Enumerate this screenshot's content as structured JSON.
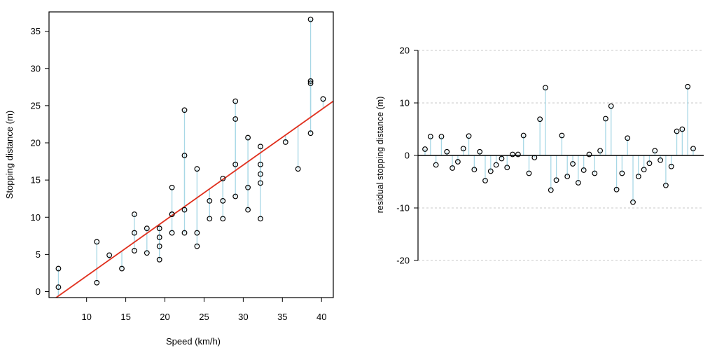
{
  "colors": {
    "residual_segment": "#a8d8e6",
    "fit_line": "#e0301e",
    "point_stroke": "#000000",
    "axis": "#000000",
    "grid": "#c8c8c8",
    "zero_line": "#000000"
  },
  "chart_data": [
    {
      "type": "scatter",
      "xlabel": "Speed (km/h)",
      "ylabel": "Stopping distance (m)",
      "xlim": [
        5.2,
        41.5
      ],
      "ylim": [
        -0.8,
        37.6
      ],
      "xticks": [
        10,
        15,
        20,
        25,
        30,
        35,
        40
      ],
      "yticks": [
        0,
        5,
        10,
        15,
        20,
        25,
        30,
        35
      ],
      "box": true,
      "fit_line": {
        "intercept": -5.36,
        "slope": 0.746
      },
      "points": [
        [
          6.4,
          0.6
        ],
        [
          6.4,
          3.1
        ],
        [
          11.3,
          1.2
        ],
        [
          11.3,
          6.7
        ],
        [
          12.9,
          4.9
        ],
        [
          14.5,
          3.1
        ],
        [
          16.1,
          5.5
        ],
        [
          16.1,
          7.9
        ],
        [
          16.1,
          10.4
        ],
        [
          17.7,
          5.2
        ],
        [
          17.7,
          8.5
        ],
        [
          19.3,
          4.3
        ],
        [
          19.3,
          6.1
        ],
        [
          19.3,
          7.3
        ],
        [
          19.3,
          8.5
        ],
        [
          20.9,
          7.9
        ],
        [
          20.9,
          10.4
        ],
        [
          20.9,
          10.4
        ],
        [
          20.9,
          14.0
        ],
        [
          22.5,
          7.9
        ],
        [
          22.5,
          11.0
        ],
        [
          22.5,
          18.3
        ],
        [
          22.5,
          24.4
        ],
        [
          24.1,
          6.1
        ],
        [
          24.1,
          7.9
        ],
        [
          24.1,
          16.5
        ],
        [
          25.7,
          9.8
        ],
        [
          25.7,
          12.2
        ],
        [
          27.4,
          9.8
        ],
        [
          27.4,
          12.2
        ],
        [
          27.4,
          15.2
        ],
        [
          29.0,
          12.8
        ],
        [
          29.0,
          17.1
        ],
        [
          29.0,
          23.2
        ],
        [
          29.0,
          25.6
        ],
        [
          30.6,
          11.0
        ],
        [
          30.6,
          14.0
        ],
        [
          30.6,
          20.7
        ],
        [
          32.2,
          9.8
        ],
        [
          32.2,
          14.6
        ],
        [
          32.2,
          15.8
        ],
        [
          32.2,
          17.1
        ],
        [
          32.2,
          19.5
        ],
        [
          35.4,
          20.1
        ],
        [
          37.0,
          16.5
        ],
        [
          38.6,
          21.3
        ],
        [
          38.6,
          28.0
        ],
        [
          38.6,
          28.3
        ],
        [
          38.6,
          36.6
        ],
        [
          40.2,
          25.9
        ]
      ]
    },
    {
      "type": "scatter",
      "xlabel": "",
      "ylabel": "residual stopping distance (m)",
      "ylim": [
        -23,
        23
      ],
      "yticks": [
        -20,
        -10,
        0,
        10,
        20
      ],
      "grid": true,
      "zero_line": true,
      "residuals": [
        1.2,
        3.6,
        -1.8,
        3.6,
        0.7,
        -2.4,
        -1.2,
        1.3,
        3.7,
        -2.7,
        0.7,
        -4.8,
        -3.0,
        -1.8,
        -0.6,
        -2.3,
        0.2,
        0.2,
        3.8,
        -3.4,
        -0.4,
        6.9,
        12.9,
        -6.6,
        -4.7,
        3.8,
        -4.0,
        -1.6,
        -5.2,
        -2.8,
        0.2,
        -3.4,
        0.9,
        7.0,
        9.4,
        -6.5,
        -3.4,
        3.3,
        -8.9,
        -4.0,
        -2.7,
        -1.5,
        0.9,
        -0.9,
        -5.7,
        -2.1,
        4.6,
        5.0,
        13.1,
        1.3
      ]
    }
  ]
}
